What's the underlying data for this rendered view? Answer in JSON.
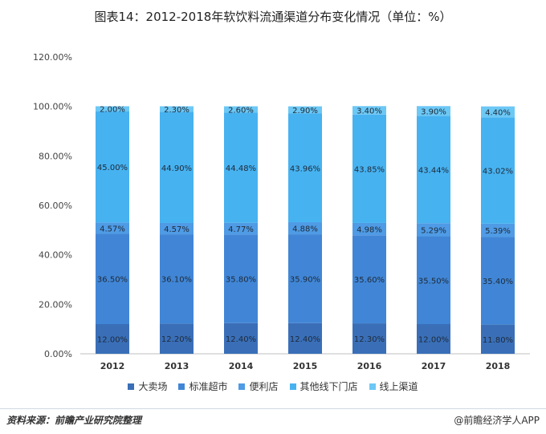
{
  "chart_data": {
    "type": "bar",
    "stacked": true,
    "title": "图表14：2012-2018年软饮料流通渠道分布变化情况（单位：%）",
    "categories": [
      "2012",
      "2013",
      "2014",
      "2015",
      "2016",
      "2017",
      "2018"
    ],
    "ylim": [
      0,
      120
    ],
    "yticks": [
      "0.00%",
      "20.00%",
      "40.00%",
      "60.00%",
      "80.00%",
      "100.00%",
      "120.00%"
    ],
    "legend_position": "bottom",
    "grid": false,
    "series": [
      {
        "name": "大卖场",
        "color": "#3a6fb8",
        "values": [
          12.0,
          12.2,
          12.4,
          12.4,
          12.3,
          12.0,
          11.8
        ],
        "labels": [
          "12.00%",
          "12.20%",
          "12.40%",
          "12.40%",
          "12.30%",
          "12.00%",
          "11.80%"
        ]
      },
      {
        "name": "标准超市",
        "color": "#4186d6",
        "values": [
          36.5,
          36.1,
          35.8,
          35.9,
          35.6,
          35.5,
          35.4
        ],
        "labels": [
          "36.50%",
          "36.10%",
          "35.80%",
          "35.90%",
          "35.60%",
          "35.50%",
          "35.40%"
        ]
      },
      {
        "name": "便利店",
        "color": "#4f9be5",
        "values": [
          4.57,
          4.57,
          4.77,
          4.88,
          4.98,
          5.29,
          5.39
        ],
        "labels": [
          "4.57%",
          "4.57%",
          "4.77%",
          "4.88%",
          "4.98%",
          "5.29%",
          "5.39%"
        ]
      },
      {
        "name": "其他线下门店",
        "color": "#47b2f0",
        "values": [
          45.0,
          44.9,
          44.48,
          43.96,
          43.85,
          43.44,
          43.02
        ],
        "labels": [
          "45.00%",
          "44.90%",
          "44.48%",
          "43.96%",
          "43.85%",
          "43.44%",
          "43.02%"
        ]
      },
      {
        "name": "线上渠道",
        "color": "#6cc8f5",
        "values": [
          2.0,
          2.3,
          2.6,
          2.9,
          3.4,
          3.9,
          4.4
        ],
        "labels": [
          "2.00%",
          "2.30%",
          "2.60%",
          "2.90%",
          "3.40%",
          "3.90%",
          "4.40%"
        ]
      }
    ]
  },
  "footer": {
    "source": "资料来源：前瞻产业研究院整理",
    "brand": "@前瞻经济学人APP"
  }
}
